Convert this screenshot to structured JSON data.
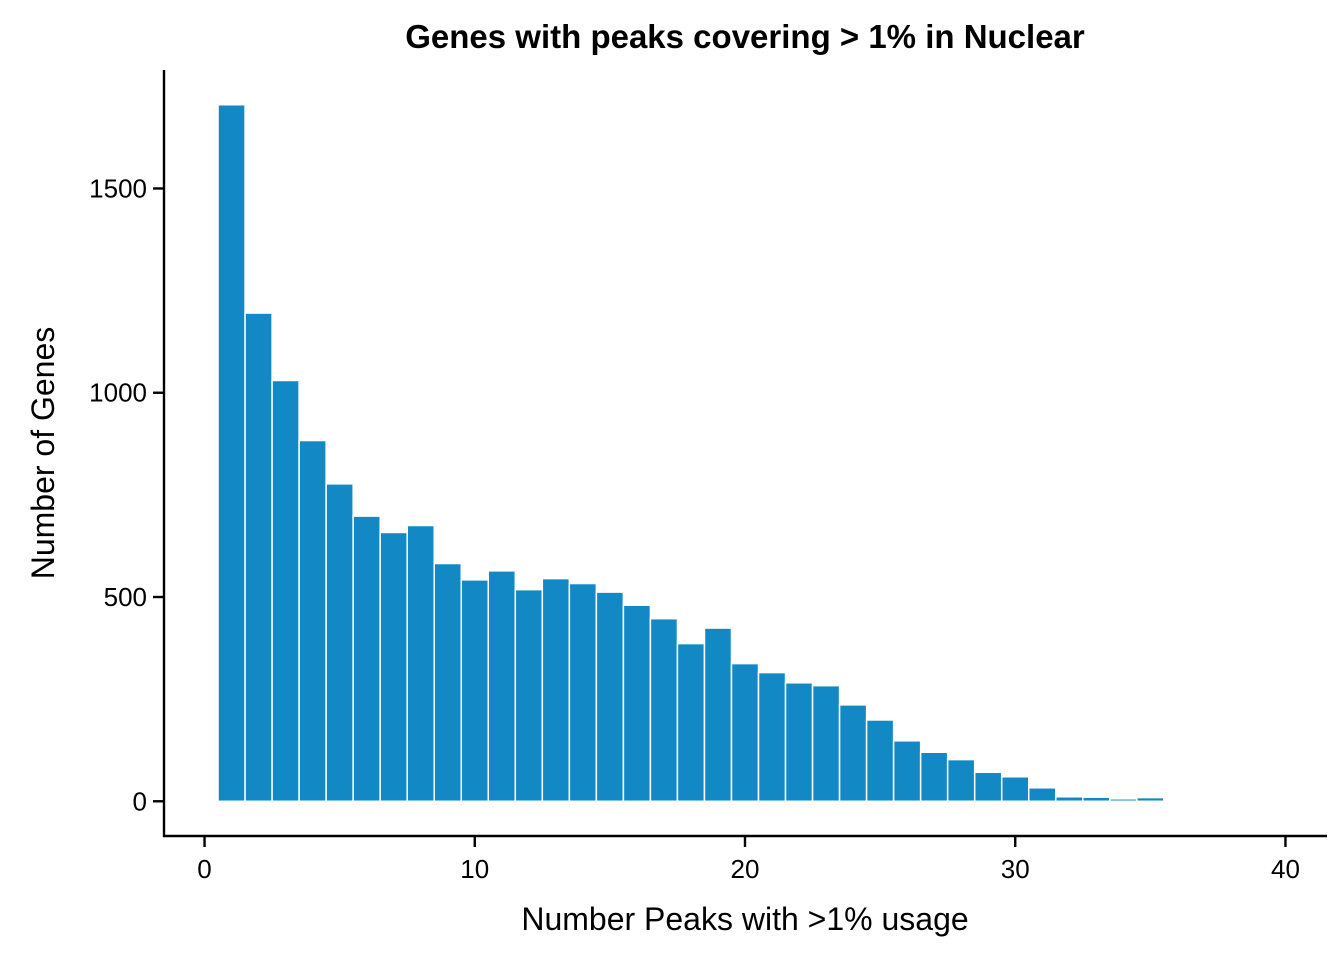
{
  "chart_data": {
    "type": "bar",
    "title": "Genes with peaks covering > 1% in Nuclear",
    "xlabel": "Number Peaks with >1% usage",
    "ylabel": "Number of Genes",
    "bar_color": "#1289C4",
    "x": [
      1,
      2,
      3,
      4,
      5,
      6,
      7,
      8,
      9,
      10,
      11,
      12,
      13,
      14,
      15,
      16,
      17,
      18,
      19,
      20,
      21,
      22,
      23,
      24,
      25,
      26,
      27,
      28,
      29,
      30,
      31,
      32,
      33,
      34,
      35,
      36,
      37,
      38,
      39
    ],
    "values": [
      1705,
      1195,
      1030,
      883,
      777,
      698,
      658,
      675,
      582,
      542,
      564,
      518,
      545,
      533,
      512,
      480,
      447,
      386,
      424,
      337,
      315,
      290,
      283,
      236,
      199,
      148,
      120,
      102,
      71,
      60,
      33,
      11,
      10,
      6,
      9,
      3,
      2,
      1,
      1
    ],
    "xlim": [
      -1.5,
      41.5
    ],
    "ylim": [
      -85,
      1790
    ],
    "xticks": [
      0,
      10,
      20,
      30,
      40
    ],
    "yticks": [
      0,
      500,
      1000,
      1500
    ],
    "xtick_labels": [
      "0",
      "10",
      "20",
      "30",
      "40"
    ],
    "ytick_labels": [
      "0",
      "500",
      "1000",
      "1500"
    ],
    "grid": false,
    "legend": "none"
  }
}
